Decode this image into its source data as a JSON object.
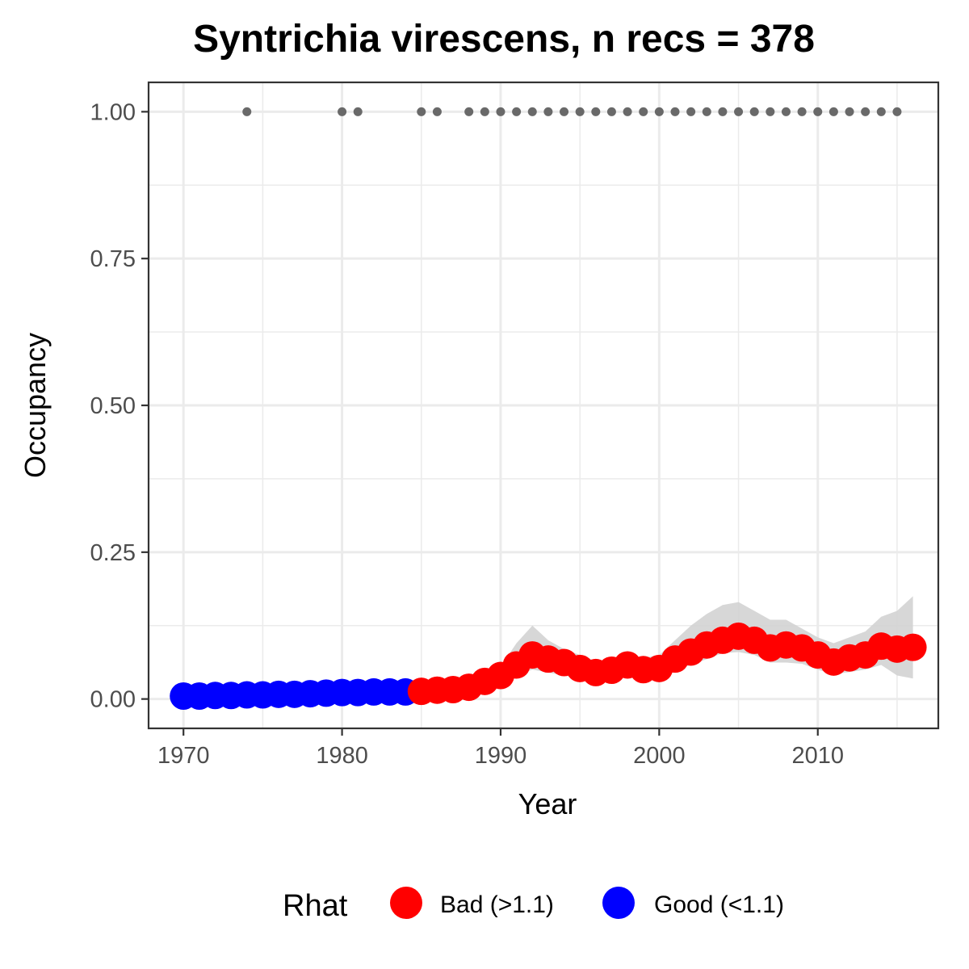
{
  "chart_data": {
    "type": "scatter",
    "title": "Syntrichia virescens, n recs = 378",
    "xlabel": "Year",
    "ylabel": "Occupancy",
    "xlim": [
      1967.8,
      2017.6
    ],
    "ylim": [
      -0.05,
      1.05
    ],
    "x_ticks": [
      1970,
      1980,
      1990,
      2000,
      2010
    ],
    "x_tick_labels": [
      "1970",
      "1980",
      "1990",
      "2000",
      "2010"
    ],
    "y_ticks": [
      0,
      0.25,
      0.5,
      0.75,
      1.0
    ],
    "y_tick_labels": [
      "0.00",
      "0.25",
      "0.50",
      "0.75",
      "1.00"
    ],
    "grid": true,
    "legend": {
      "title": "Rhat",
      "position": "bottom",
      "entries": [
        {
          "label": "Bad (>1.1)",
          "color": "#ff0000"
        },
        {
          "label": "Good (<1.1)",
          "color": "#0000ff"
        }
      ]
    },
    "colors": {
      "bad": "#ff0000",
      "good": "#0000ff",
      "records": "#696969",
      "ribbon": "#d3d3d3"
    },
    "occupancy": {
      "x": [
        1970,
        1971,
        1972,
        1973,
        1974,
        1975,
        1976,
        1977,
        1978,
        1979,
        1980,
        1981,
        1982,
        1983,
        1984,
        1985,
        1986,
        1987,
        1988,
        1989,
        1990,
        1991,
        1992,
        1993,
        1994,
        1995,
        1996,
        1997,
        1998,
        1999,
        2000,
        2001,
        2002,
        2003,
        2004,
        2005,
        2006,
        2007,
        2008,
        2009,
        2010,
        2011,
        2012,
        2013,
        2014,
        2015,
        2016
      ],
      "y": [
        0.005,
        0.005,
        0.006,
        0.006,
        0.007,
        0.007,
        0.008,
        0.008,
        0.009,
        0.01,
        0.011,
        0.011,
        0.012,
        0.012,
        0.012,
        0.013,
        0.015,
        0.016,
        0.02,
        0.03,
        0.04,
        0.058,
        0.075,
        0.068,
        0.062,
        0.052,
        0.045,
        0.049,
        0.058,
        0.05,
        0.052,
        0.068,
        0.08,
        0.092,
        0.1,
        0.107,
        0.1,
        0.087,
        0.092,
        0.087,
        0.075,
        0.063,
        0.07,
        0.075,
        0.09,
        0.085,
        0.088
      ],
      "lower": [
        0.003,
        0.003,
        0.004,
        0.004,
        0.004,
        0.005,
        0.005,
        0.005,
        0.006,
        0.006,
        0.007,
        0.007,
        0.008,
        0.008,
        0.008,
        0.009,
        0.01,
        0.011,
        0.014,
        0.02,
        0.028,
        0.04,
        0.05,
        0.045,
        0.04,
        0.035,
        0.03,
        0.035,
        0.042,
        0.038,
        0.04,
        0.05,
        0.058,
        0.068,
        0.078,
        0.08,
        0.075,
        0.062,
        0.062,
        0.06,
        0.05,
        0.042,
        0.046,
        0.05,
        0.058,
        0.04,
        0.035
      ],
      "upper": [
        0.008,
        0.008,
        0.009,
        0.009,
        0.01,
        0.01,
        0.011,
        0.011,
        0.012,
        0.013,
        0.014,
        0.015,
        0.016,
        0.016,
        0.016,
        0.018,
        0.02,
        0.022,
        0.028,
        0.04,
        0.055,
        0.095,
        0.125,
        0.1,
        0.085,
        0.075,
        0.065,
        0.065,
        0.075,
        0.07,
        0.075,
        0.1,
        0.125,
        0.145,
        0.16,
        0.165,
        0.15,
        0.135,
        0.135,
        0.12,
        0.105,
        0.095,
        0.105,
        0.115,
        0.14,
        0.15,
        0.175
      ],
      "status": [
        "good",
        "good",
        "good",
        "good",
        "good",
        "good",
        "good",
        "good",
        "good",
        "good",
        "good",
        "good",
        "good",
        "good",
        "good",
        "bad",
        "bad",
        "bad",
        "bad",
        "bad",
        "bad",
        "bad",
        "bad",
        "bad",
        "bad",
        "bad",
        "bad",
        "bad",
        "bad",
        "bad",
        "bad",
        "bad",
        "bad",
        "bad",
        "bad",
        "bad",
        "bad",
        "bad",
        "bad",
        "bad",
        "bad",
        "bad",
        "bad",
        "bad",
        "bad",
        "bad",
        "bad"
      ]
    },
    "records": {
      "x": [
        1974,
        1980,
        1981,
        1985,
        1986,
        1988,
        1989,
        1990,
        1991,
        1992,
        1993,
        1994,
        1995,
        1996,
        1997,
        1998,
        1999,
        2000,
        2001,
        2002,
        2003,
        2004,
        2005,
        2006,
        2007,
        2008,
        2009,
        2010,
        2011,
        2012,
        2013,
        2014,
        2015
      ],
      "y": [
        1,
        1,
        1,
        1,
        1,
        1,
        1,
        1,
        1,
        1,
        1,
        1,
        1,
        1,
        1,
        1,
        1,
        1,
        1,
        1,
        1,
        1,
        1,
        1,
        1,
        1,
        1,
        1,
        1,
        1,
        1,
        1,
        1
      ]
    }
  }
}
